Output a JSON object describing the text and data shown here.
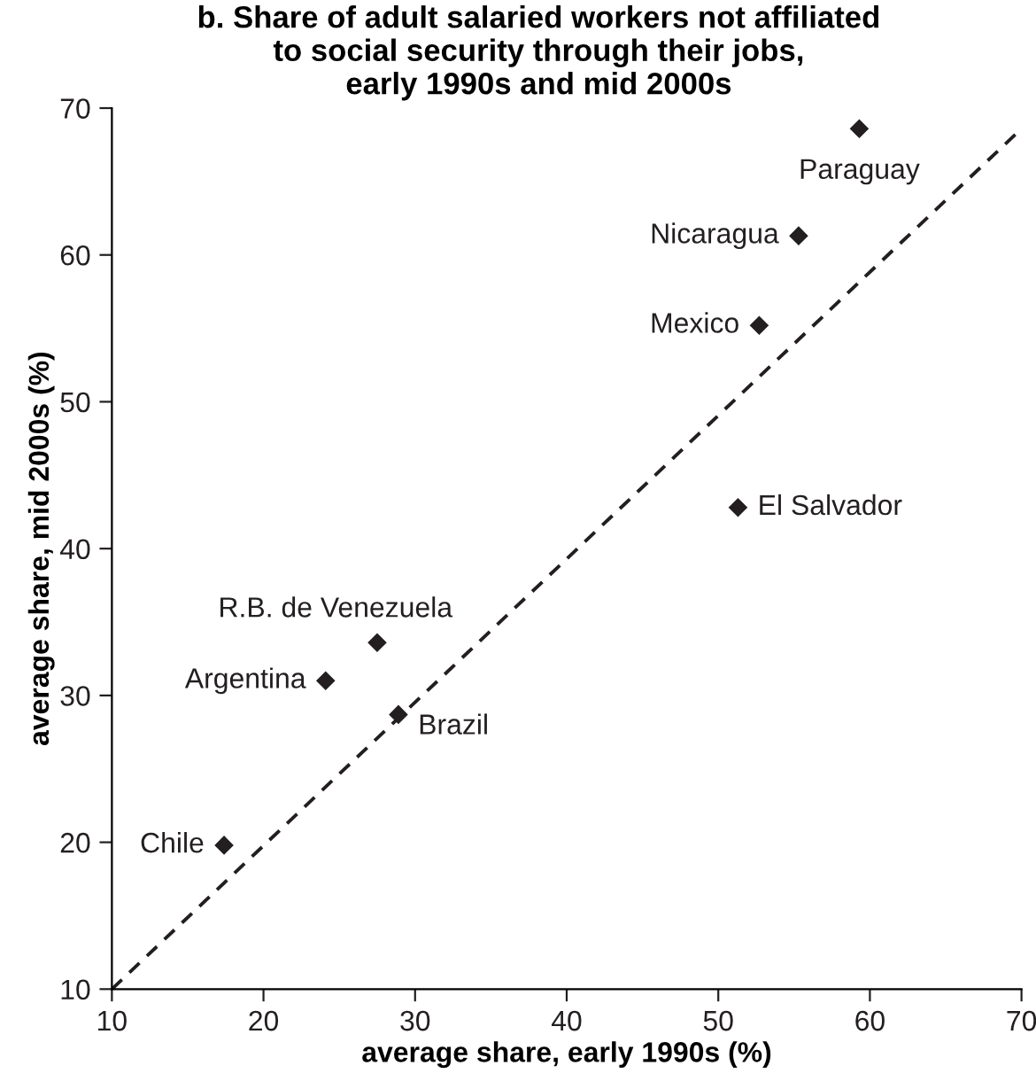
{
  "chart_data": {
    "type": "scatter",
    "title": "b. Share of adult salaried workers not affiliated\nto social security through their jobs,\nearly 1990s and mid 2000s",
    "xlabel": "average share, early 1990s (%)",
    "ylabel": "average share, mid 2000s (%)",
    "xlim": [
      10,
      70
    ],
    "ylim": [
      10,
      70
    ],
    "xticks": [
      10,
      20,
      30,
      40,
      50,
      60,
      70
    ],
    "yticks": [
      10,
      20,
      30,
      40,
      50,
      60,
      70
    ],
    "grid": false,
    "legend": false,
    "marker": "diamond",
    "series": [
      {
        "name": "Paraguay",
        "color": "#231f20",
        "x": [
          59.3
        ],
        "values": [
          68.6
        ]
      },
      {
        "name": "Nicaragua",
        "color": "#231f20",
        "x": [
          55.3
        ],
        "values": [
          61.3
        ]
      },
      {
        "name": "Mexico",
        "color": "#231f20",
        "x": [
          52.7
        ],
        "values": [
          55.2
        ]
      },
      {
        "name": "El Salvador",
        "color": "#231f20",
        "x": [
          51.3
        ],
        "values": [
          42.8
        ]
      },
      {
        "name": "R.B. de Venezuela",
        "color": "#231f20",
        "x": [
          27.5
        ],
        "values": [
          33.6
        ]
      },
      {
        "name": "Argentina",
        "color": "#231f20",
        "x": [
          24.1
        ],
        "values": [
          31.0
        ]
      },
      {
        "name": "Brazil",
        "color": "#231f20",
        "x": [
          28.9
        ],
        "values": [
          28.7
        ]
      },
      {
        "name": "Chile",
        "color": "#231f20",
        "x": [
          17.4
        ],
        "values": [
          19.8
        ]
      },
      {
        "type": "line",
        "color": "#231f20",
        "line_style": "dashed",
        "marker": "none",
        "x": [
          10,
          70
        ],
        "values": [
          10,
          68.6
        ]
      }
    ]
  }
}
